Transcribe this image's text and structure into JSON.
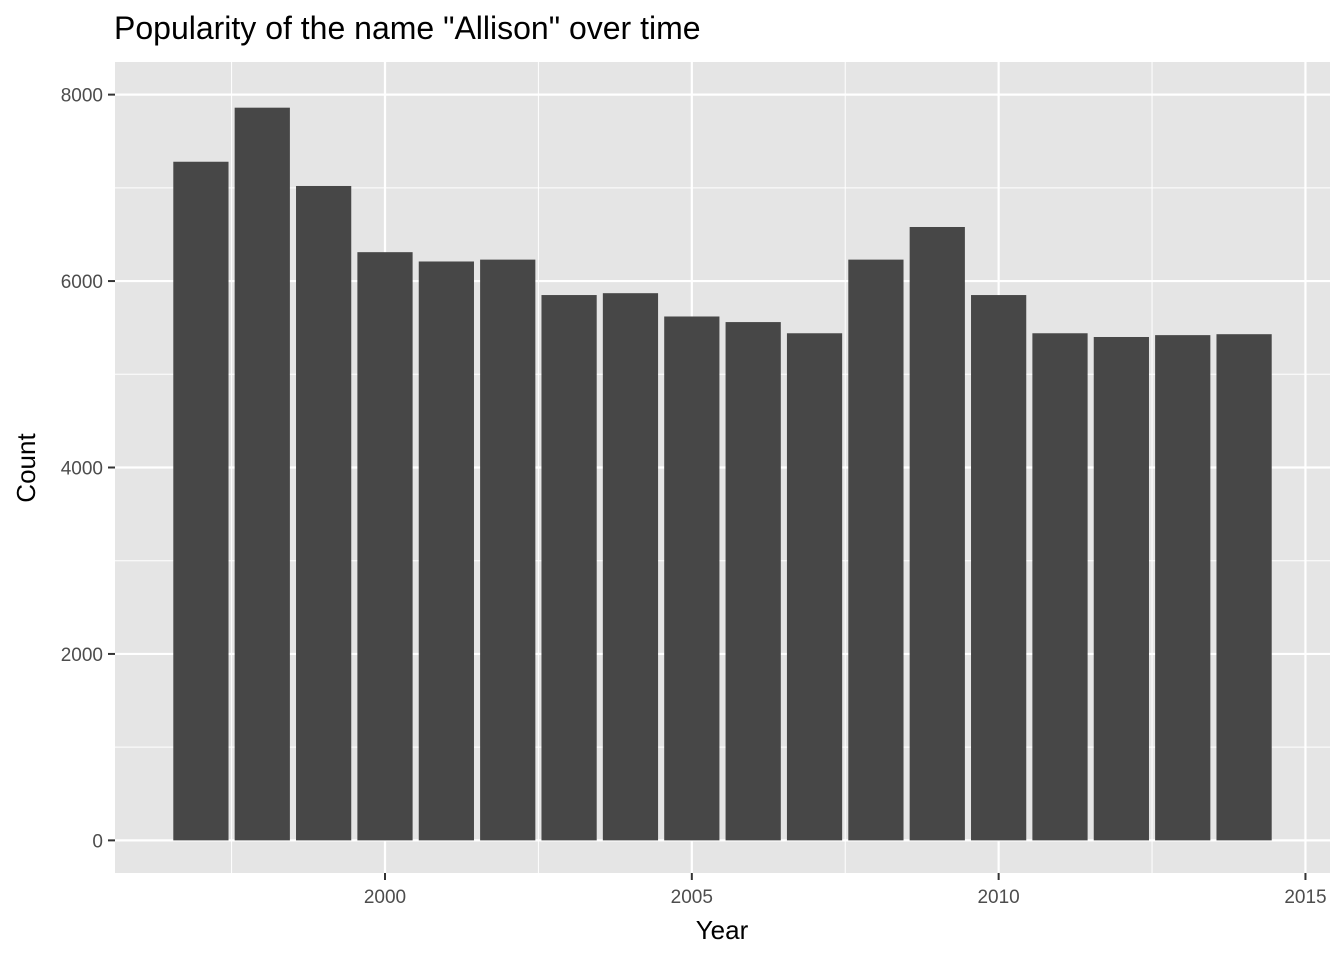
{
  "chart_data": {
    "type": "bar",
    "title": "Popularity of the name \"Allison\" over time",
    "xlabel": "Year",
    "ylabel": "Count",
    "x": [
      1997,
      1998,
      1999,
      2000,
      2001,
      2002,
      2003,
      2004,
      2005,
      2006,
      2007,
      2008,
      2009,
      2010,
      2011,
      2012,
      2013,
      2014
    ],
    "values": [
      7280,
      7860,
      7020,
      6310,
      6210,
      6230,
      5850,
      5870,
      5620,
      5560,
      5440,
      6230,
      6580,
      5850,
      5440,
      5400,
      5420,
      5430
    ],
    "xlim": [
      1995.6,
      2015.4
    ],
    "ylim": [
      -350,
      8350
    ],
    "x_ticks": [
      2000,
      2005,
      2010,
      2015
    ],
    "x_tick_labels": [
      "2000",
      "2005",
      "2010",
      "2015"
    ],
    "y_ticks": [
      0,
      2000,
      4000,
      6000,
      8000
    ],
    "y_tick_labels": [
      "0",
      "2000",
      "4000",
      "6000",
      "8000"
    ],
    "grid": true,
    "legend": "none",
    "colors": {
      "bar": "#474747",
      "panel": "#e5e5e5",
      "grid_major": "#ffffff",
      "tick_text": "#4d4d4d",
      "tick_mark": "#333333"
    }
  }
}
